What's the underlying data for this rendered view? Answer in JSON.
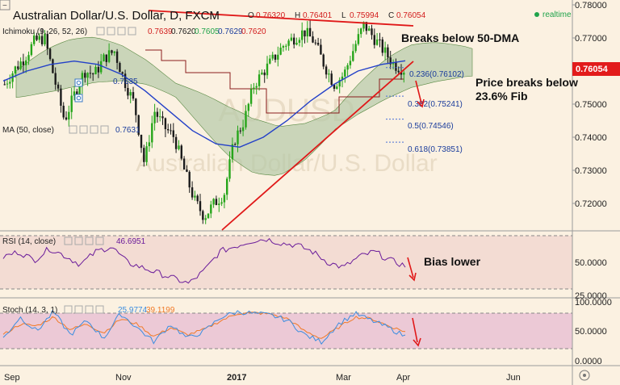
{
  "header": {
    "title": "Australian Dollar/U.S. Dollar, D, FXCM",
    "ohlc": [
      {
        "k": "O",
        "v": "0.76320"
      },
      {
        "k": "H",
        "v": "0.76401"
      },
      {
        "k": "L",
        "v": "0.75994"
      },
      {
        "k": "C",
        "v": "0.76054"
      }
    ],
    "realtime": "realtime"
  },
  "legend": {
    "ichimoku_label": "Ichimoku (9, 26, 52, 26)",
    "ichimoku_values": [
      "0.7639",
      "0.7620",
      "0.7605",
      "0.7629",
      "0.7620"
    ],
    "ma_row_value": "0.7635",
    "ma50_label": "MA (50, close)",
    "ma50_value": "0.7631"
  },
  "price_panel": {
    "yticks": [
      "0.78000",
      "0.77000",
      "0.76000",
      "0.75000",
      "0.74000",
      "0.73000",
      "0.72000"
    ],
    "last_price": "0.76054",
    "fib_levels": [
      {
        "label": "0.236(0.76102)",
        "value": 0.76102
      },
      {
        "label": "0.382(0.75241)",
        "value": 0.75241
      },
      {
        "label": "0.5(0.74546)",
        "value": 0.74546
      },
      {
        "label": "0.618(0.73851)",
        "value": 0.73851
      }
    ],
    "annotations": {
      "breaks_ma": "Breaks below 50-DMA",
      "fib_line1": "Price breaks below",
      "fib_line2": "23.6% Fib"
    },
    "watermark_line1": "AUDUSD",
    "watermark_line2": "Australian Dollar/U.S. Dollar"
  },
  "rsi_panel": {
    "label": "RSI (14, close)",
    "value": "46.6951",
    "yticks": [
      "50.0000",
      "25.0000"
    ],
    "annotation": "Bias lower"
  },
  "stoch_panel": {
    "label": "Stoch (14, 3, 1)",
    "k_value": "25.9774",
    "d_value": "39.1199",
    "yticks": [
      "100.0000",
      "50.0000",
      "0.0000"
    ]
  },
  "xaxis": {
    "labels": [
      "Sep",
      "Nov",
      "2017",
      "Mar",
      "Apr",
      "Jun"
    ]
  },
  "colors": {
    "bull": "#26a51a",
    "bear": "#1b1b1b",
    "ma50": "#2340c8",
    "cloud": "#b5c9a8",
    "trend": "#e01818",
    "fib": "#4a6fd6",
    "rsi": "#6a1b9a",
    "stochK": "#3b8de0",
    "stochD": "#f07a28",
    "rsi_band": "#f3dcd3",
    "stoch_band": "#ecc9d6",
    "price_tag": "#e21b1b"
  },
  "chart_data": {
    "type": "line",
    "series": [
      {
        "name": "AUDUSD",
        "values": [
          0.756,
          0.7605,
          0.764,
          0.769,
          0.77,
          0.7575,
          0.745,
          0.753,
          0.76,
          0.759,
          0.764,
          0.766,
          0.757,
          0.75,
          0.732,
          0.748,
          0.743,
          0.74,
          0.73,
          0.721,
          0.716,
          0.72,
          0.723,
          0.739,
          0.745,
          0.756,
          0.76,
          0.764,
          0.768,
          0.77,
          0.772,
          0.769,
          0.762,
          0.756,
          0.759,
          0.767,
          0.774,
          0.77,
          0.766,
          0.762,
          0.7605
        ]
      },
      {
        "name": "MA (50, close)",
        "values": [
          0.757,
          0.76,
          0.762,
          0.763,
          0.762,
          0.759,
          0.754,
          0.748,
          0.742,
          0.738,
          0.737,
          0.74,
          0.745,
          0.751,
          0.756,
          0.76,
          0.762,
          0.7631
        ]
      },
      {
        "name": "RSI (14, close)",
        "values": [
          55,
          60,
          52,
          63,
          56,
          48,
          60,
          65,
          50,
          45,
          40,
          35,
          30,
          42,
          60,
          65,
          70,
          72,
          68,
          66,
          60,
          50,
          45,
          55,
          60,
          52,
          46.7
        ]
      },
      {
        "name": "Stoch (14, 3, 1) %K",
        "values": [
          20,
          80,
          40,
          95,
          30,
          70,
          20,
          90,
          50,
          10,
          60,
          20,
          40,
          80,
          95,
          90,
          85,
          70,
          30,
          10,
          60,
          90,
          70,
          50,
          26
        ]
      },
      {
        "name": "Stoch (14, 3, 1) %D",
        "values": [
          30,
          60,
          55,
          80,
          45,
          60,
          35,
          75,
          60,
          25,
          50,
          30,
          45,
          70,
          90,
          92,
          88,
          75,
          40,
          20,
          50,
          80,
          75,
          55,
          39
        ]
      }
    ],
    "ylim": [
      0.712,
      0.78
    ]
  }
}
